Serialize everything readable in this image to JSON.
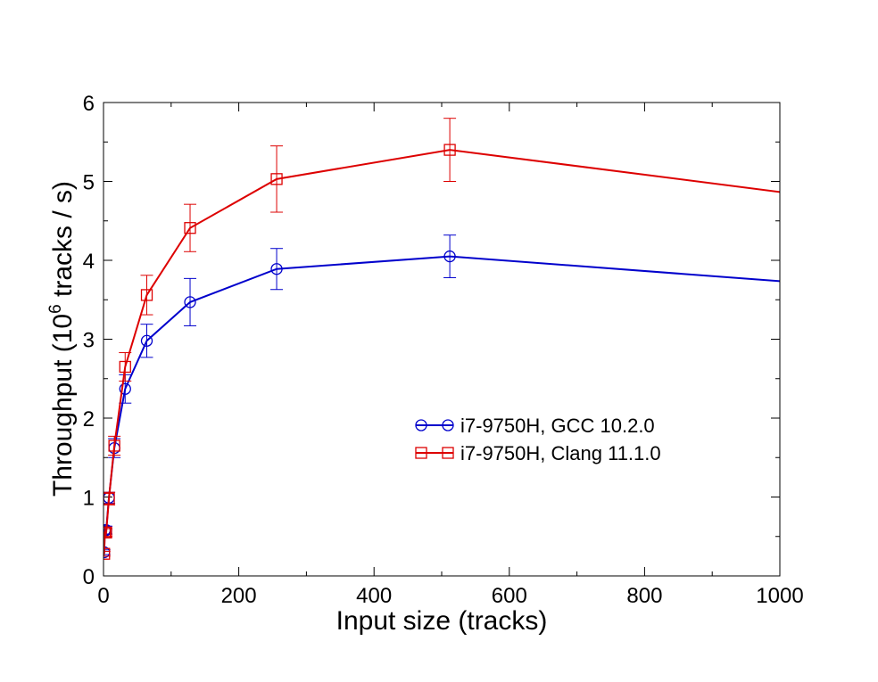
{
  "chart_data": {
    "type": "line",
    "title": "",
    "xlabel": "Input size (tracks)",
    "ylabel_prefix": "Throughput (10",
    "ylabel_exp": "6",
    "ylabel_suffix": " tracks / s)",
    "xlim": [
      0,
      1000
    ],
    "ylim": [
      0,
      6
    ],
    "x_ticks": [
      "0",
      "200",
      "400",
      "600",
      "800",
      "1000"
    ],
    "y_ticks": [
      "0",
      "1",
      "2",
      "3",
      "4",
      "5",
      "6"
    ],
    "grid": false,
    "legend_position": "center-right",
    "series": [
      {
        "name": "i7-9750H, GCC 10.2.0",
        "color": "#0000cc",
        "marker": "circle",
        "x": [
          1,
          2,
          4,
          8,
          16,
          32,
          64,
          128,
          256,
          512,
          1024
        ],
        "y": [
          0.3,
          0.58,
          0.58,
          0.99,
          1.62,
          2.37,
          2.98,
          3.47,
          3.89,
          4.05,
          3.72
        ],
        "err": [
          0.03,
          0.05,
          0.05,
          0.07,
          0.12,
          0.18,
          0.21,
          0.3,
          0.26,
          0.27,
          0.27
        ]
      },
      {
        "name": "i7-9750H, Clang 11.1.0",
        "color": "#dd0000",
        "marker": "square",
        "x": [
          1,
          2,
          4,
          8,
          16,
          32,
          64,
          128,
          256,
          512,
          1024
        ],
        "y": [
          0.28,
          0.55,
          0.55,
          0.98,
          1.65,
          2.65,
          3.56,
          4.41,
          5.03,
          5.4,
          4.84
        ],
        "err": [
          0.03,
          0.05,
          0.05,
          0.08,
          0.12,
          0.18,
          0.25,
          0.3,
          0.42,
          0.4,
          0.4
        ]
      }
    ]
  }
}
